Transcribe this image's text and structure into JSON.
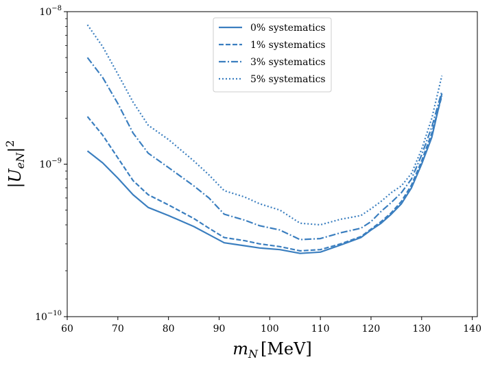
{
  "chart_data": {
    "type": "line",
    "title": "",
    "xlabel": "m_N [MeV]",
    "ylabel": "|U_eN|^2",
    "xlim": [
      60,
      141
    ],
    "ylim": [
      1e-10,
      1e-08
    ],
    "yscale": "log",
    "x_ticks": [
      60,
      70,
      80,
      90,
      100,
      110,
      120,
      130,
      140
    ],
    "y_ticks": [
      {
        "value": 1e-10,
        "base": "10",
        "exp": "−10"
      },
      {
        "value": 1e-09,
        "base": "10",
        "exp": "−9"
      },
      {
        "value": 1e-08,
        "base": "10",
        "exp": "−8"
      }
    ],
    "legend_position": "top-center",
    "color": "#3a7ebf",
    "series": [
      {
        "name": "0% systematics",
        "style": "solid",
        "x": [
          64,
          67,
          70,
          73,
          76,
          80,
          85,
          88,
          91,
          95,
          98,
          102,
          106,
          110,
          114,
          118,
          120,
          122,
          124,
          126,
          128,
          130,
          132,
          134
        ],
        "values": [
          1.22e-09,
          1.02e-09,
          8.1e-10,
          6.3e-10,
          5.2e-10,
          4.6e-10,
          3.9e-10,
          3.45e-10,
          3.05e-10,
          2.92e-10,
          2.82e-10,
          2.75e-10,
          2.6e-10,
          2.65e-10,
          2.95e-10,
          3.3e-10,
          3.7e-10,
          4.1e-10,
          4.7e-10,
          5.5e-10,
          7e-10,
          1e-09,
          1.5e-09,
          2.9e-09
        ]
      },
      {
        "name": "1% systematics",
        "style": "dashed",
        "x": [
          64,
          67,
          70,
          73,
          76,
          80,
          85,
          88,
          91,
          95,
          98,
          102,
          106,
          110,
          114,
          118,
          120,
          122,
          124,
          126,
          128,
          130,
          132,
          134
        ],
        "values": [
          2.05e-09,
          1.55e-09,
          1.1e-09,
          7.8e-10,
          6.3e-10,
          5.4e-10,
          4.4e-10,
          3.8e-10,
          3.3e-10,
          3.15e-10,
          3e-10,
          2.88e-10,
          2.7e-10,
          2.75e-10,
          3e-10,
          3.35e-10,
          3.75e-10,
          4.2e-10,
          4.8e-10,
          5.7e-10,
          7.3e-10,
          1.05e-09,
          1.6e-09,
          2.8e-09
        ]
      },
      {
        "name": "3% systematics",
        "style": "dashdot",
        "x": [
          64,
          67,
          70,
          73,
          76,
          80,
          85,
          88,
          91,
          95,
          98,
          102,
          106,
          110,
          114,
          118,
          120,
          122,
          124,
          126,
          128,
          130,
          132,
          134
        ],
        "values": [
          5e-09,
          3.7e-09,
          2.5e-09,
          1.6e-09,
          1.18e-09,
          9.5e-10,
          7.2e-10,
          6e-10,
          4.7e-10,
          4.3e-10,
          3.95e-10,
          3.7e-10,
          3.2e-10,
          3.25e-10,
          3.55e-10,
          3.8e-10,
          4.2e-10,
          4.9e-10,
          5.6e-10,
          6.5e-10,
          8e-10,
          1.15e-09,
          1.75e-09,
          3e-09
        ]
      },
      {
        "name": "5% systematics",
        "style": "dotted",
        "x": [
          64,
          67,
          70,
          73,
          76,
          80,
          85,
          88,
          91,
          95,
          98,
          102,
          106,
          110,
          114,
          118,
          120,
          122,
          124,
          126,
          128,
          130,
          132,
          134
        ],
        "values": [
          8.2e-09,
          5.9e-09,
          3.9e-09,
          2.55e-09,
          1.8e-09,
          1.45e-09,
          1.05e-09,
          8.5e-10,
          6.7e-10,
          6.1e-10,
          5.5e-10,
          5e-10,
          4.1e-10,
          4e-10,
          4.35e-10,
          4.6e-10,
          5.1e-10,
          5.7e-10,
          6.5e-10,
          7.2e-10,
          8.7e-10,
          1.25e-09,
          2e-09,
          3.8e-09
        ]
      }
    ]
  }
}
